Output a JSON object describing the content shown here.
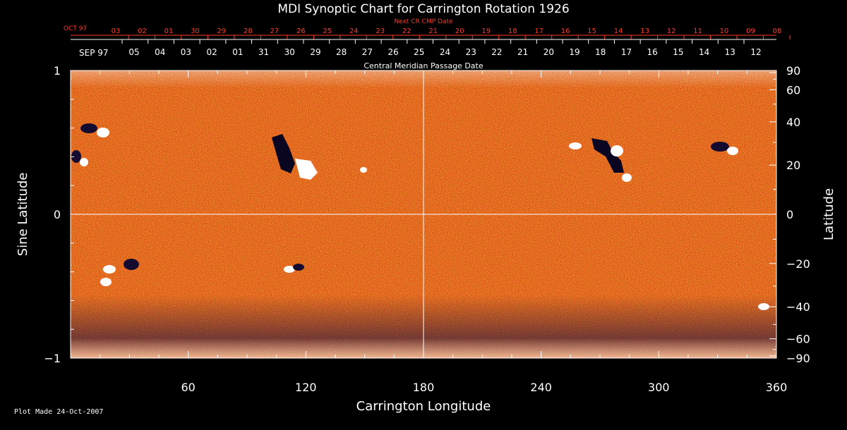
{
  "chart_data": {
    "type": "heatmap",
    "title": "MDI Synoptic Chart for Carrington Rotation 1926",
    "xlabel": "Carrington Longitude",
    "ylabel_left": "Sine Latitude",
    "ylabel_right": "Latitude",
    "xlim": [
      0,
      360
    ],
    "ylim": [
      -1,
      1
    ],
    "x_ticks": [
      60,
      120,
      180,
      240,
      300,
      360
    ],
    "y_ticks_left": [
      1,
      0,
      -1
    ],
    "y_ticks_right": [
      90,
      60,
      40,
      20,
      0,
      -20,
      -40,
      -60,
      -90
    ],
    "next_cr_header": "Next CR CMP Date",
    "next_cr_month": "OCT 97",
    "next_cr_dates": [
      "03",
      "02",
      "01",
      "30",
      "29",
      "28",
      "27",
      "26",
      "25",
      "24",
      "23",
      "22",
      "21",
      "20",
      "19",
      "18",
      "17",
      "16",
      "15",
      "14",
      "13",
      "12",
      "11",
      "10",
      "09",
      "08"
    ],
    "cmp_month": "SEP 97",
    "cmp_dates": [
      "05",
      "04",
      "03",
      "02",
      "01",
      "31",
      "30",
      "29",
      "28",
      "27",
      "26",
      "25",
      "24",
      "23",
      "22",
      "21",
      "20",
      "19",
      "18",
      "17",
      "16",
      "15",
      "14",
      "13",
      "12"
    ],
    "cmp_label": "Central Meridian Passage Date",
    "grid_lines": [
      "longitude 180",
      "sine latitude 0"
    ],
    "colors": {
      "background": "#000000",
      "field_positive": "#ffffff",
      "field_negative": "#1a1040",
      "map_base": "#e0501a",
      "next_cr_text": "#ff3a2a",
      "axis": "#ffffff"
    }
  },
  "footer": "Plot Made 24-Oct-2007"
}
